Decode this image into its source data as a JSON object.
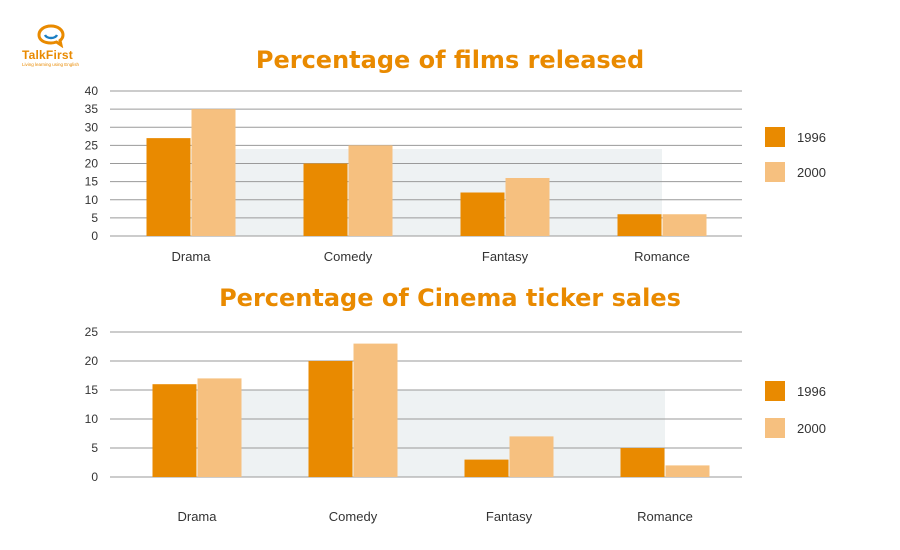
{
  "logo": {
    "name": "TalkFirst",
    "tagline": "Living learning using English",
    "icon": "speech-bubble-icon"
  },
  "colors": {
    "series_1996": "#e98a00",
    "series_2000": "#f6c07f",
    "title": "#e98a00",
    "grid": "#9a9a9a",
    "shade": "#eef2f3"
  },
  "chart_data": [
    {
      "type": "bar",
      "title": "Percentage of films released",
      "categories": [
        "Drama",
        "Comedy",
        "Fantasy",
        "Romance"
      ],
      "series": [
        {
          "name": "1996",
          "values": [
            27,
            20,
            12,
            6
          ]
        },
        {
          "name": "2000",
          "values": [
            35,
            25,
            16,
            6
          ]
        }
      ],
      "ylim": [
        0,
        40
      ],
      "yticks": [
        0,
        5,
        10,
        15,
        20,
        25,
        30,
        35,
        40
      ],
      "grid": true,
      "legend": "right"
    },
    {
      "type": "bar",
      "title": "Percentage of Cinema ticker sales",
      "categories": [
        "Drama",
        "Comedy",
        "Fantasy",
        "Romance"
      ],
      "series": [
        {
          "name": "1996",
          "values": [
            16,
            20,
            3,
            5
          ]
        },
        {
          "name": "2000",
          "values": [
            17,
            23,
            7,
            2
          ]
        }
      ],
      "ylim": [
        0,
        25
      ],
      "yticks": [
        0,
        5,
        10,
        15,
        20,
        25
      ],
      "grid": true,
      "legend": "right"
    }
  ]
}
